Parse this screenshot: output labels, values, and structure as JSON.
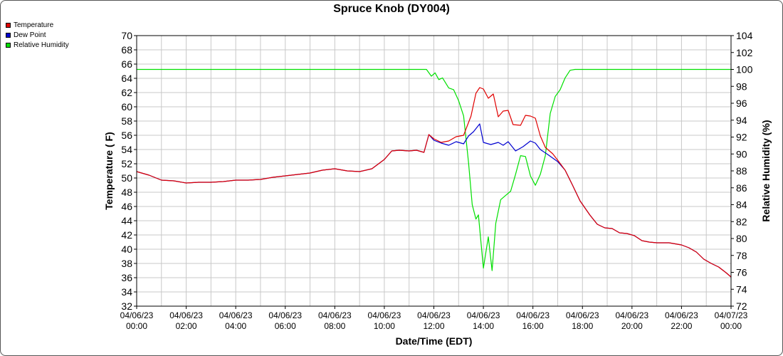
{
  "chart_data": {
    "type": "line",
    "title": "Spruce Knob (DY004)",
    "xlabel": "Date/Time (EDT)",
    "ylabel": "Temperature ( F)",
    "ylabel_right": "Relative Humidity (%)",
    "ylim": [
      32,
      70
    ],
    "ylim_right": [
      72,
      104
    ],
    "y_ticks": [
      32,
      34,
      36,
      38,
      40,
      42,
      44,
      46,
      48,
      50,
      52,
      54,
      56,
      58,
      60,
      62,
      64,
      66,
      68,
      70
    ],
    "y_ticks_right": [
      72,
      74,
      76,
      78,
      80,
      82,
      84,
      86,
      88,
      90,
      92,
      94,
      96,
      98,
      100,
      102,
      104
    ],
    "x_ticks": [
      {
        "date": "04/06/23",
        "time": "00:00"
      },
      {
        "date": "04/06/23",
        "time": "02:00"
      },
      {
        "date": "04/06/23",
        "time": "04:00"
      },
      {
        "date": "04/06/23",
        "time": "06:00"
      },
      {
        "date": "04/06/23",
        "time": "08:00"
      },
      {
        "date": "04/06/23",
        "time": "10:00"
      },
      {
        "date": "04/06/23",
        "time": "12:00"
      },
      {
        "date": "04/06/23",
        "time": "14:00"
      },
      {
        "date": "04/06/23",
        "time": "16:00"
      },
      {
        "date": "04/06/23",
        "time": "18:00"
      },
      {
        "date": "04/06/23",
        "time": "20:00"
      },
      {
        "date": "04/06/23",
        "time": "22:00"
      },
      {
        "date": "04/07/23",
        "time": "00:00"
      }
    ],
    "x_hours_range": [
      0,
      24
    ],
    "grid": true,
    "legend_position": "top-left",
    "series": [
      {
        "name": "Temperature",
        "color": "#e00000",
        "axis": "left",
        "points": [
          [
            0,
            50.9
          ],
          [
            0.5,
            50.4
          ],
          [
            1,
            49.7
          ],
          [
            1.5,
            49.6
          ],
          [
            2,
            49.3
          ],
          [
            2.5,
            49.4
          ],
          [
            3,
            49.4
          ],
          [
            3.5,
            49.5
          ],
          [
            4,
            49.7
          ],
          [
            4.5,
            49.7
          ],
          [
            5,
            49.8
          ],
          [
            5.5,
            50.1
          ],
          [
            6,
            50.3
          ],
          [
            6.5,
            50.5
          ],
          [
            7,
            50.7
          ],
          [
            7.5,
            51.1
          ],
          [
            8,
            51.3
          ],
          [
            8.5,
            51.0
          ],
          [
            9,
            50.9
          ],
          [
            9.5,
            51.3
          ],
          [
            10,
            52.6
          ],
          [
            10.3,
            53.8
          ],
          [
            10.6,
            53.9
          ],
          [
            11,
            53.8
          ],
          [
            11.3,
            53.9
          ],
          [
            11.6,
            53.6
          ],
          [
            11.8,
            56.1
          ],
          [
            12,
            55.5
          ],
          [
            12.3,
            55.0
          ],
          [
            12.6,
            55.2
          ],
          [
            12.9,
            55.8
          ],
          [
            13.2,
            56.0
          ],
          [
            13.5,
            58.7
          ],
          [
            13.7,
            61.9
          ],
          [
            13.85,
            62.7
          ],
          [
            14,
            62.5
          ],
          [
            14.2,
            61.2
          ],
          [
            14.4,
            61.8
          ],
          [
            14.6,
            58.6
          ],
          [
            14.8,
            59.4
          ],
          [
            15,
            59.5
          ],
          [
            15.2,
            57.5
          ],
          [
            15.5,
            57.4
          ],
          [
            15.7,
            58.8
          ],
          [
            15.9,
            58.7
          ],
          [
            16.1,
            58.4
          ],
          [
            16.3,
            55.9
          ],
          [
            16.5,
            54.3
          ],
          [
            16.8,
            53.4
          ],
          [
            17,
            52.5
          ],
          [
            17.3,
            51.1
          ],
          [
            17.6,
            49.0
          ],
          [
            17.9,
            46.8
          ],
          [
            18.3,
            44.8
          ],
          [
            18.6,
            43.5
          ],
          [
            18.9,
            43.0
          ],
          [
            19.2,
            42.9
          ],
          [
            19.5,
            42.3
          ],
          [
            19.8,
            42.2
          ],
          [
            20.1,
            41.9
          ],
          [
            20.4,
            41.2
          ],
          [
            20.7,
            41.0
          ],
          [
            21,
            40.9
          ],
          [
            21.5,
            40.9
          ],
          [
            22,
            40.6
          ],
          [
            22.3,
            40.2
          ],
          [
            22.6,
            39.6
          ],
          [
            22.9,
            38.6
          ],
          [
            23.2,
            38.0
          ],
          [
            23.5,
            37.5
          ],
          [
            23.8,
            36.7
          ],
          [
            24,
            36.1
          ]
        ]
      },
      {
        "name": "Dew Point",
        "color": "#0000d0",
        "axis": "left",
        "points": [
          [
            0,
            50.9
          ],
          [
            0.5,
            50.4
          ],
          [
            1,
            49.7
          ],
          [
            1.5,
            49.6
          ],
          [
            2,
            49.3
          ],
          [
            2.5,
            49.4
          ],
          [
            3,
            49.4
          ],
          [
            3.5,
            49.5
          ],
          [
            4,
            49.7
          ],
          [
            4.5,
            49.7
          ],
          [
            5,
            49.8
          ],
          [
            5.5,
            50.1
          ],
          [
            6,
            50.3
          ],
          [
            6.5,
            50.5
          ],
          [
            7,
            50.7
          ],
          [
            7.5,
            51.1
          ],
          [
            8,
            51.3
          ],
          [
            8.5,
            51.0
          ],
          [
            9,
            50.9
          ],
          [
            9.5,
            51.3
          ],
          [
            10,
            52.6
          ],
          [
            10.3,
            53.8
          ],
          [
            10.6,
            53.9
          ],
          [
            11,
            53.8
          ],
          [
            11.3,
            53.9
          ],
          [
            11.6,
            53.6
          ],
          [
            11.8,
            56.1
          ],
          [
            12,
            55.3
          ],
          [
            12.3,
            54.9
          ],
          [
            12.6,
            54.6
          ],
          [
            12.9,
            55.1
          ],
          [
            13.2,
            54.8
          ],
          [
            13.4,
            55.9
          ],
          [
            13.6,
            56.5
          ],
          [
            13.85,
            57.6
          ],
          [
            14,
            55.0
          ],
          [
            14.3,
            54.7
          ],
          [
            14.6,
            55.0
          ],
          [
            14.8,
            54.6
          ],
          [
            15,
            55.1
          ],
          [
            15.3,
            53.8
          ],
          [
            15.6,
            54.4
          ],
          [
            15.9,
            55.2
          ],
          [
            16.1,
            54.9
          ],
          [
            16.3,
            54.0
          ],
          [
            16.6,
            53.3
          ],
          [
            17,
            52.3
          ],
          [
            17.3,
            51.1
          ],
          [
            17.6,
            49.0
          ],
          [
            17.9,
            46.8
          ],
          [
            18.3,
            44.8
          ],
          [
            18.6,
            43.5
          ],
          [
            18.9,
            43.0
          ],
          [
            19.2,
            42.9
          ],
          [
            19.5,
            42.3
          ],
          [
            19.8,
            42.2
          ],
          [
            20.1,
            41.9
          ],
          [
            20.4,
            41.2
          ],
          [
            20.7,
            41.0
          ],
          [
            21,
            40.9
          ],
          [
            21.5,
            40.9
          ],
          [
            22,
            40.6
          ],
          [
            22.3,
            40.2
          ],
          [
            22.6,
            39.6
          ],
          [
            22.9,
            38.6
          ],
          [
            23.2,
            38.0
          ],
          [
            23.5,
            37.5
          ],
          [
            23.8,
            36.7
          ],
          [
            24,
            36.1
          ]
        ]
      },
      {
        "name": "Relative Humidity",
        "color": "#00e000",
        "axis": "right",
        "points": [
          [
            0,
            100
          ],
          [
            11.7,
            100
          ],
          [
            11.9,
            99.2
          ],
          [
            12.05,
            99.6
          ],
          [
            12.2,
            98.8
          ],
          [
            12.35,
            99.0
          ],
          [
            12.6,
            97.8
          ],
          [
            12.8,
            97.6
          ],
          [
            13.0,
            96.3
          ],
          [
            13.2,
            94.5
          ],
          [
            13.4,
            89.0
          ],
          [
            13.55,
            84.0
          ],
          [
            13.7,
            82.3
          ],
          [
            13.8,
            82.8
          ],
          [
            14.0,
            76.5
          ],
          [
            14.2,
            80.2
          ],
          [
            14.35,
            76.2
          ],
          [
            14.5,
            81.8
          ],
          [
            14.7,
            84.6
          ],
          [
            14.9,
            85.1
          ],
          [
            15.1,
            85.6
          ],
          [
            15.3,
            87.6
          ],
          [
            15.5,
            89.8
          ],
          [
            15.7,
            89.7
          ],
          [
            15.9,
            87.4
          ],
          [
            16.1,
            86.3
          ],
          [
            16.3,
            87.6
          ],
          [
            16.5,
            89.8
          ],
          [
            16.7,
            94.8
          ],
          [
            16.9,
            96.8
          ],
          [
            17.1,
            97.6
          ],
          [
            17.3,
            99.0
          ],
          [
            17.5,
            99.9
          ],
          [
            17.7,
            100
          ],
          [
            24,
            100
          ]
        ]
      }
    ]
  }
}
